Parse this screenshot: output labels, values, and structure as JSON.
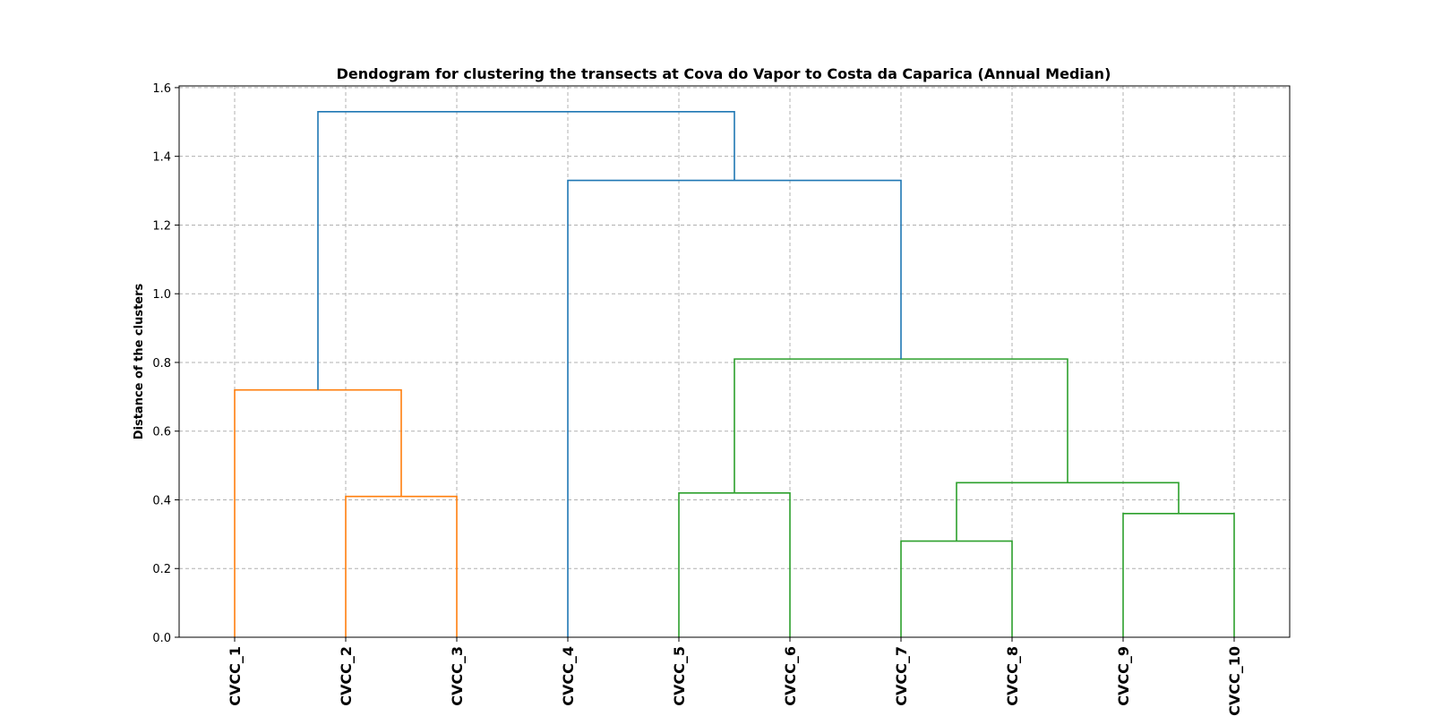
{
  "chart_data": {
    "type": "dendrogram",
    "title": "Dendogram for clustering the transects at Cova do Vapor to Costa da Caparica (Annual Median)",
    "xlabel": "",
    "ylabel": "Distance of the clusters",
    "ylim": [
      0,
      1.605
    ],
    "yticks": [
      "0.0",
      "0.2",
      "0.4",
      "0.6",
      "0.8",
      "1.0",
      "1.2",
      "1.4",
      "1.6"
    ],
    "leaves": [
      "CVCC_1",
      "CVCC_2",
      "CVCC_3",
      "CVCC_4",
      "CVCC_5",
      "CVCC_6",
      "CVCC_7",
      "CVCC_8",
      "CVCC_9",
      "CVCC_10"
    ],
    "grid": true,
    "colors": {
      "orange": "#ff7f0e",
      "green": "#2ca02c",
      "blue": "#1f77b4"
    },
    "merges": [
      {
        "left": "CVCC_2",
        "right": "CVCC_3",
        "height": 0.41,
        "color": "#ff7f0e"
      },
      {
        "left": "CVCC_1",
        "right": "CVCC_2+CVCC_3",
        "height": 0.72,
        "color": "#ff7f0e"
      },
      {
        "left": "CVCC_5",
        "right": "CVCC_6",
        "height": 0.42,
        "color": "#2ca02c"
      },
      {
        "left": "CVCC_7",
        "right": "CVCC_8",
        "height": 0.28,
        "color": "#2ca02c"
      },
      {
        "left": "CVCC_9",
        "right": "CVCC_10",
        "height": 0.36,
        "color": "#2ca02c"
      },
      {
        "left": "CVCC_7+CVCC_8",
        "right": "CVCC_9+CVCC_10",
        "height": 0.45,
        "color": "#2ca02c"
      },
      {
        "left": "CVCC_5+CVCC_6",
        "right": "CVCC_7..CVCC_10",
        "height": 0.81,
        "color": "#2ca02c"
      },
      {
        "left": "CVCC_4",
        "right": "CVCC_5..CVCC_10",
        "height": 1.33,
        "color": "#1f77b4"
      },
      {
        "left": "CVCC_1..CVCC_3",
        "right": "CVCC_4..CVCC_10",
        "height": 1.53,
        "color": "#1f77b4"
      }
    ]
  }
}
